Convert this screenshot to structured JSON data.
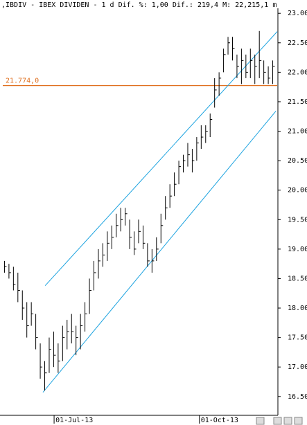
{
  "chart_data": {
    "type": "ohlc",
    "title": ",IBDIV - IBEX DIVIDEN -  1 d Dif. %: 1,00 Dif.: 219,4 M: 22,215,1 m",
    "color": "#000000",
    "x": [
      0,
      1,
      2,
      3,
      4,
      5,
      6,
      7,
      8,
      9,
      10,
      11,
      12,
      13,
      14,
      15,
      16,
      17,
      18,
      19,
      20,
      21,
      22,
      23,
      24,
      25,
      26,
      27,
      28,
      29,
      30,
      31,
      32,
      33,
      34,
      35,
      36,
      37,
      38,
      39,
      40,
      41,
      42,
      43,
      44,
      45,
      46,
      47,
      48,
      49,
      50,
      51,
      52,
      53,
      54,
      55,
      56,
      57,
      58,
      59,
      60
    ],
    "high": [
      18.8,
      18.75,
      18.7,
      18.6,
      18.3,
      18.1,
      18.1,
      17.9,
      17.4,
      17.1,
      17.5,
      17.6,
      17.4,
      17.7,
      17.8,
      17.9,
      17.7,
      17.9,
      18.1,
      18.5,
      18.8,
      19.0,
      19.1,
      19.3,
      19.4,
      19.6,
      19.7,
      19.7,
      19.5,
      19.3,
      19.5,
      19.4,
      19.1,
      19.0,
      19.2,
      19.6,
      19.9,
      20.1,
      20.3,
      20.5,
      20.6,
      20.8,
      20.7,
      20.9,
      21.1,
      21.1,
      21.3,
      21.9,
      22.0,
      22.4,
      22.6,
      22.6,
      22.3,
      22.4,
      22.3,
      22.4,
      22.3,
      22.7,
      22.2,
      22.1,
      22.2
    ],
    "low": [
      18.6,
      18.5,
      18.3,
      18.1,
      17.8,
      17.5,
      17.7,
      17.3,
      16.8,
      16.6,
      16.9,
      17.0,
      16.9,
      17.1,
      17.3,
      17.4,
      17.2,
      17.3,
      17.6,
      17.9,
      18.3,
      18.5,
      18.7,
      18.8,
      19.0,
      19.2,
      19.3,
      19.4,
      19.0,
      18.9,
      19.1,
      19.0,
      18.7,
      18.6,
      18.8,
      19.1,
      19.5,
      19.7,
      19.9,
      20.1,
      20.3,
      20.4,
      20.3,
      20.5,
      20.7,
      20.8,
      20.9,
      21.4,
      21.6,
      22.0,
      22.3,
      22.2,
      21.9,
      21.8,
      21.9,
      21.9,
      21.8,
      21.9,
      21.8,
      21.8,
      21.8
    ],
    "close": [
      18.7,
      18.6,
      18.4,
      18.3,
      18.0,
      17.7,
      17.9,
      17.5,
      17.0,
      16.9,
      17.3,
      17.2,
      17.1,
      17.5,
      17.6,
      17.6,
      17.5,
      17.7,
      17.9,
      18.3,
      18.6,
      18.8,
      18.9,
      19.1,
      19.2,
      19.4,
      19.5,
      19.6,
      19.2,
      19.0,
      19.3,
      19.1,
      18.8,
      18.8,
      19.0,
      19.4,
      19.7,
      19.9,
      20.1,
      20.4,
      20.5,
      20.6,
      20.5,
      20.8,
      20.9,
      21.0,
      21.2,
      21.7,
      21.9,
      22.3,
      22.5,
      22.4,
      22.1,
      22.2,
      22.0,
      22.2,
      22.1,
      22.2,
      22.0,
      21.9,
      22.1
    ],
    "xlim": [
      -1,
      61
    ],
    "xticks": [
      {
        "value": 11.1,
        "label": "01-Jul-13"
      },
      {
        "value": 43.6,
        "label": "01-Oct-13"
      }
    ],
    "ylim": [
      16.38,
      23.12
    ],
    "yticks": [
      {
        "value": 16.5,
        "label": "16.50"
      },
      {
        "value": 17,
        "label": "17.00"
      },
      {
        "value": 17.5,
        "label": "17.50"
      },
      {
        "value": 18,
        "label": "18.00"
      },
      {
        "value": 18.5,
        "label": "18.50"
      },
      {
        "value": 19,
        "label": "19.00"
      },
      {
        "value": 19.5,
        "label": "19.50"
      },
      {
        "value": 20,
        "label": "20.00"
      },
      {
        "value": 20.5,
        "label": "20.50"
      },
      {
        "value": 21,
        "label": "21.00"
      },
      {
        "value": 21.5,
        "label": "21.50"
      },
      {
        "value": 22,
        "label": "22.00"
      },
      {
        "value": 22.5,
        "label": "22.50"
      },
      {
        "value": 23,
        "label": "23.00"
      }
    ],
    "hline": {
      "value": 21.774,
      "label": "21.774,0",
      "color": "#e07020"
    },
    "channels": [
      {
        "x": [
          9.1,
          61
        ],
        "values": [
          18.38,
          22.69
        ],
        "color": "#1ca3e0"
      },
      {
        "x": [
          8.6,
          60.7
        ],
        "values": [
          16.57,
          21.34
        ],
        "color": "#1ca3e0"
      }
    ]
  }
}
